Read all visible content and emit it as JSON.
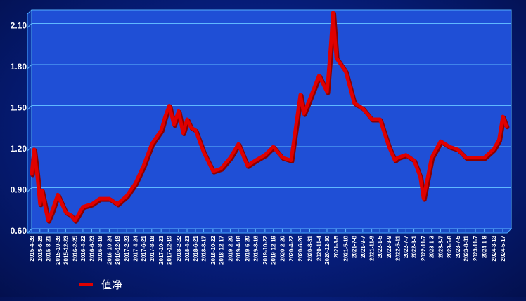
{
  "chart_data": {
    "type": "line",
    "title": "",
    "xlabel": "",
    "ylabel": "",
    "ylim": [
      0.6,
      2.2
    ],
    "yticks": [
      "0.60",
      "0.90",
      "1.20",
      "1.50",
      "1.80",
      "2.10"
    ],
    "ytick_values": [
      0.6,
      0.9,
      1.2,
      1.5,
      1.8,
      2.1
    ],
    "x_tick_labels": [
      "2015-4-28",
      "2015-6-25",
      "2015-8-21",
      "2015-10-28",
      "2015-12-23",
      "2016-2-25",
      "2016-4-22",
      "2016-6-23",
      "2016-8-18",
      "2016-10-24",
      "2016-12-19",
      "2017-2-23",
      "2017-4-24",
      "2017-6-21",
      "2017-8-18",
      "2017-10-23",
      "2017-12-19",
      "2018-2-22",
      "2018-4-23",
      "2018-6-21",
      "2018-8-17",
      "2018-10-22",
      "2018-12-17",
      "2019-2-20",
      "2019-4-18",
      "2019-6-20",
      "2019-8-16",
      "2019-10-22",
      "2019-12-19",
      "2020-2-20",
      "2020-4-22",
      "2020-6-26",
      "2020-8-31",
      "2020-11-4",
      "2020-12-30",
      "2021-3-5",
      "2021-5-10",
      "2021-7-8",
      "2021-9-7",
      "2021-11-9",
      "2022-1-5",
      "2022-3-9",
      "2022-5-11",
      "2022-7-7",
      "2022-9-1",
      "2022-11-7",
      "2023-1-3",
      "2023-3-7",
      "2023-5-8",
      "2023-7-5",
      "2023-8-31",
      "2023-11-7",
      "2024-1-8",
      "2024-3-13",
      "2024-5-17"
    ],
    "grid": true,
    "legend_position": "bottom-left",
    "series": [
      {
        "name": "值净",
        "color": "#e00000",
        "x": [
          "2015-4-28",
          "2015-5-15",
          "2015-6-10",
          "2015-6-25",
          "2015-7-8",
          "2015-8-21",
          "2015-9-15",
          "2015-10-28",
          "2015-12-23",
          "2016-1-28",
          "2016-2-25",
          "2016-4-22",
          "2016-6-23",
          "2016-8-18",
          "2016-10-24",
          "2016-12-19",
          "2017-2-23",
          "2017-4-24",
          "2017-6-21",
          "2017-8-18",
          "2017-10-23",
          "2017-11-20",
          "2017-12-19",
          "2018-1-20",
          "2018-2-22",
          "2018-3-25",
          "2018-4-23",
          "2018-5-20",
          "2018-6-21",
          "2018-8-17",
          "2018-10-22",
          "2018-12-17",
          "2019-2-20",
          "2019-4-18",
          "2019-6-20",
          "2019-8-16",
          "2019-10-22",
          "2019-12-19",
          "2020-2-20",
          "2020-4-22",
          "2020-6-26",
          "2020-7-20",
          "2020-8-31",
          "2020-11-4",
          "2020-12-30",
          "2021-1-25",
          "2021-2-10",
          "2021-3-5",
          "2021-5-10",
          "2021-7-8",
          "2021-9-7",
          "2021-11-9",
          "2022-1-5",
          "2022-3-9",
          "2022-4-20",
          "2022-5-11",
          "2022-7-7",
          "2022-9-1",
          "2022-10-15",
          "2022-11-7",
          "2023-1-3",
          "2023-3-7",
          "2023-5-8",
          "2023-7-5",
          "2023-8-31",
          "2023-11-7",
          "2024-1-8",
          "2024-3-13",
          "2024-4-20",
          "2024-5-17",
          "2024-6-10"
        ],
        "values": [
          1.0,
          1.18,
          0.95,
          0.78,
          0.88,
          0.66,
          0.72,
          0.85,
          0.72,
          0.7,
          0.66,
          0.76,
          0.78,
          0.82,
          0.82,
          0.78,
          0.84,
          0.93,
          1.06,
          1.22,
          1.32,
          1.42,
          1.5,
          1.36,
          1.46,
          1.3,
          1.4,
          1.34,
          1.32,
          1.16,
          1.02,
          1.04,
          1.12,
          1.22,
          1.06,
          1.1,
          1.14,
          1.2,
          1.12,
          1.1,
          1.58,
          1.44,
          1.55,
          1.72,
          1.6,
          1.94,
          2.18,
          1.85,
          1.75,
          1.52,
          1.48,
          1.4,
          1.4,
          1.2,
          1.1,
          1.12,
          1.14,
          1.1,
          0.98,
          0.82,
          1.12,
          1.24,
          1.2,
          1.18,
          1.12,
          1.12,
          1.12,
          1.18,
          1.25,
          1.42,
          1.35
        ]
      }
    ]
  }
}
